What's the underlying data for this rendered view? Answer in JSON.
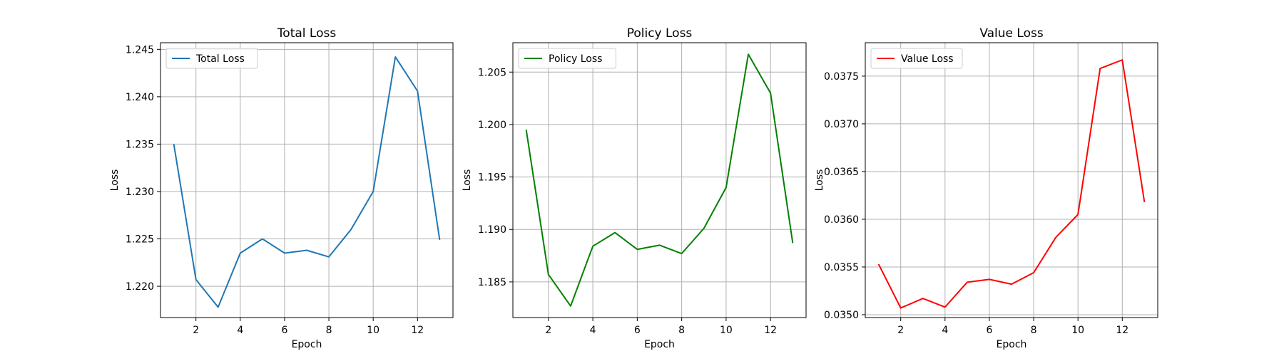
{
  "chart_data": [
    {
      "type": "line",
      "title": "Total Loss",
      "xlabel": "Epoch",
      "ylabel": "Loss",
      "color": "#1f77b4",
      "legend_position": "upper-left",
      "grid": true,
      "xlim": [
        0.4,
        13.6
      ],
      "ylim": [
        1.2167,
        1.2457
      ],
      "xticks": [
        2,
        4,
        6,
        8,
        10,
        12
      ],
      "yticks": [
        1.22,
        1.225,
        1.23,
        1.235,
        1.24,
        1.245
      ],
      "ytick_labels": [
        "1.220",
        "1.225",
        "1.230",
        "1.235",
        "1.240",
        "1.245"
      ],
      "series": [
        {
          "name": "Total Loss",
          "x": [
            1,
            2,
            3,
            4,
            5,
            6,
            7,
            8,
            9,
            10,
            11,
            12,
            13
          ],
          "values": [
            1.235,
            1.2207,
            1.2178,
            1.2235,
            1.225,
            1.2235,
            1.2238,
            1.2231,
            1.226,
            1.23,
            1.2442,
            1.2406,
            1.2249
          ]
        }
      ]
    },
    {
      "type": "line",
      "title": "Policy Loss",
      "xlabel": "Epoch",
      "ylabel": "Loss",
      "color": "#008000",
      "legend_position": "upper-left",
      "grid": true,
      "xlim": [
        0.4,
        13.6
      ],
      "ylim": [
        1.1816,
        1.2078
      ],
      "xticks": [
        2,
        4,
        6,
        8,
        10,
        12
      ],
      "yticks": [
        1.185,
        1.19,
        1.195,
        1.2,
        1.205
      ],
      "ytick_labels": [
        "1.185",
        "1.190",
        "1.195",
        "1.200",
        "1.205"
      ],
      "series": [
        {
          "name": "Policy Loss",
          "x": [
            1,
            2,
            3,
            4,
            5,
            6,
            7,
            8,
            9,
            10,
            11,
            12,
            13
          ],
          "values": [
            1.1995,
            1.1857,
            1.1827,
            1.1884,
            1.1897,
            1.1881,
            1.1885,
            1.1877,
            1.1901,
            1.194,
            1.2067,
            1.203,
            1.1887
          ]
        }
      ]
    },
    {
      "type": "line",
      "title": "Value Loss",
      "xlabel": "Epoch",
      "ylabel": "Loss",
      "color": "#ff0000",
      "legend_position": "upper-left",
      "grid": true,
      "xlim": [
        0.4,
        13.6
      ],
      "ylim": [
        0.03497,
        0.03785
      ],
      "xticks": [
        2,
        4,
        6,
        8,
        10,
        12
      ],
      "yticks": [
        0.035,
        0.0355,
        0.036,
        0.0365,
        0.037,
        0.0375
      ],
      "ytick_labels": [
        "0.0350",
        "0.0355",
        "0.0360",
        "0.0365",
        "0.0370",
        "0.0375"
      ],
      "series": [
        {
          "name": "Value Loss",
          "x": [
            1,
            2,
            3,
            4,
            5,
            6,
            7,
            8,
            9,
            10,
            11,
            12,
            13
          ],
          "values": [
            0.03553,
            0.03507,
            0.03517,
            0.03508,
            0.03534,
            0.03537,
            0.03532,
            0.03544,
            0.03581,
            0.03605,
            0.03758,
            0.03767,
            0.03618
          ]
        }
      ]
    }
  ]
}
